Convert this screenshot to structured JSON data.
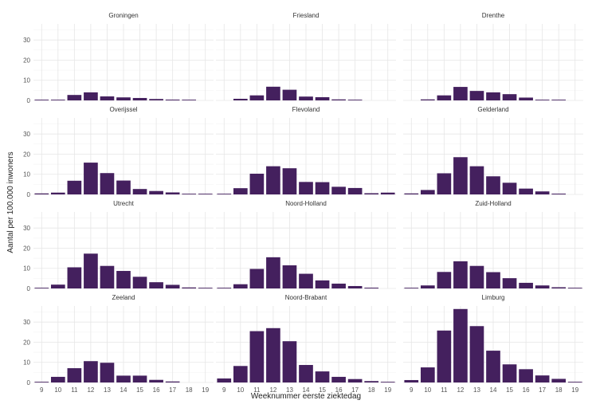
{
  "chart_data": {
    "type": "bar",
    "layout": "facet-grid",
    "ncol": 3,
    "xlabel": "Weeknummer eerste ziektedag",
    "ylabel": "Aantal per 100.000 inwoners",
    "ylim": [
      0,
      38
    ],
    "yticks": [
      0,
      10,
      20,
      30
    ],
    "categories": [
      "9",
      "10",
      "11",
      "12",
      "13",
      "14",
      "15",
      "16",
      "17",
      "18",
      "19"
    ],
    "bar_color": "#44205e",
    "grid": true,
    "panels": [
      {
        "title": "Groningen",
        "values": [
          0.2,
          0.3,
          2.7,
          4.0,
          2.0,
          1.5,
          1.2,
          0.7,
          0.4,
          0.2,
          0
        ]
      },
      {
        "title": "Friesland",
        "values": [
          0,
          0.8,
          2.5,
          6.8,
          5.3,
          1.9,
          1.6,
          0.5,
          0.3,
          0,
          0
        ]
      },
      {
        "title": "Drenthe",
        "values": [
          0,
          0.5,
          2.5,
          6.7,
          4.7,
          4.0,
          3.1,
          1.4,
          0.3,
          0.2,
          0
        ]
      },
      {
        "title": "Overijssel",
        "values": [
          0.5,
          0.9,
          6.8,
          15.8,
          10.6,
          6.9,
          2.7,
          1.7,
          1.0,
          0.2,
          0.1
        ]
      },
      {
        "title": "Flevoland",
        "values": [
          0.3,
          3.1,
          10.3,
          14.0,
          13.0,
          6.2,
          6.1,
          3.8,
          3.2,
          0.6,
          0.9
        ]
      },
      {
        "title": "Gelderland",
        "values": [
          0.5,
          2.2,
          10.5,
          18.5,
          14.0,
          9.0,
          5.8,
          2.9,
          1.5,
          0.4,
          0
        ]
      },
      {
        "title": "Utrecht",
        "values": [
          0.3,
          1.9,
          10.5,
          17.3,
          11.2,
          8.7,
          5.8,
          3.1,
          1.8,
          0.5,
          0.1
        ]
      },
      {
        "title": "Noord-Holland",
        "values": [
          0.3,
          2.1,
          9.7,
          15.5,
          11.5,
          7.3,
          4.0,
          2.4,
          1.2,
          0.4,
          0
        ]
      },
      {
        "title": "Zuid-Holland",
        "values": [
          0.3,
          1.5,
          8.2,
          13.5,
          11.2,
          8.1,
          5.1,
          2.8,
          1.5,
          0.6,
          0.2
        ]
      },
      {
        "title": "Zeeland",
        "values": [
          0.3,
          2.8,
          7.1,
          10.6,
          9.8,
          3.4,
          3.4,
          1.3,
          0.5,
          0,
          0
        ]
      },
      {
        "title": "Noord-Brabant",
        "values": [
          2.0,
          8.2,
          25.5,
          27.0,
          20.5,
          8.7,
          5.5,
          2.8,
          1.7,
          0.7,
          0.2
        ]
      },
      {
        "title": "Limburg",
        "values": [
          1.2,
          7.5,
          25.8,
          36.5,
          28.0,
          15.8,
          9.0,
          6.6,
          3.5,
          1.8,
          0.2
        ]
      }
    ]
  }
}
